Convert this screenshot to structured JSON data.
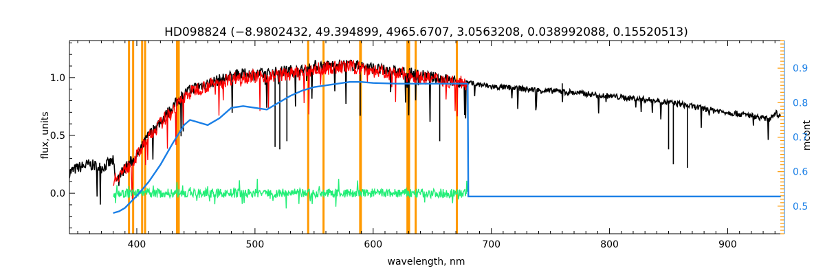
{
  "chart_data": {
    "type": "line",
    "title": "HD098824   (−8.9802432, 49.394899, 4965.6707, 3.0563208, 0.038992088, 0.15520513)",
    "xlabel": "wavelength, nm",
    "ylabel": "flux, units",
    "y2label": "mcont",
    "xlim": [
      343,
      948
    ],
    "ylim": [
      -0.35,
      1.32
    ],
    "y2lim": [
      0.42,
      0.98
    ],
    "xticks": [
      400,
      500,
      600,
      700,
      800,
      900
    ],
    "yticks": [
      0.0,
      0.5,
      1.0
    ],
    "y2ticks": [
      0.5,
      0.6,
      0.7,
      0.8,
      0.9
    ],
    "grid": false,
    "colors": {
      "observed": "#000000",
      "model": "#ff0000",
      "residual": "#22ee77",
      "continuum": "#1a7fe6",
      "mask_lines": "#ff9900",
      "right_axis": "#1a7fe6"
    },
    "mask_lines_nm": [
      393.4,
      396.9,
      404.5,
      407.0,
      434.0,
      435.5,
      545.0,
      558.0,
      589.0,
      589.6,
      629.0,
      630.4,
      636.0,
      670.8
    ],
    "series": [
      {
        "role": "observed",
        "x": [
          343,
          350,
          360,
          370,
          380,
          382,
          390,
          400,
          410,
          420,
          430,
          440,
          450,
          460,
          470,
          480,
          490,
          500,
          510,
          520,
          530,
          540,
          550,
          560,
          570,
          580,
          590,
          600,
          610,
          620,
          630,
          640,
          650,
          660,
          670,
          680,
          690,
          700,
          720,
          740,
          760,
          780,
          800,
          820,
          840,
          860,
          880,
          900,
          920,
          935,
          940,
          945
        ],
        "y": [
          0.18,
          0.22,
          0.25,
          0.22,
          0.28,
          0.1,
          0.22,
          0.32,
          0.5,
          0.62,
          0.74,
          0.86,
          0.92,
          0.95,
          0.98,
          1.01,
          1.03,
          1.03,
          1.03,
          1.05,
          1.06,
          1.06,
          1.1,
          1.1,
          1.11,
          1.11,
          1.1,
          1.08,
          1.06,
          1.05,
          1.04,
          1.02,
          1.0,
          0.99,
          0.96,
          0.95,
          0.94,
          0.92,
          0.91,
          0.89,
          0.88,
          0.86,
          0.84,
          0.82,
          0.8,
          0.77,
          0.73,
          0.7,
          0.67,
          0.64,
          0.7,
          0.66
        ]
      },
      {
        "role": "model",
        "x": [
          380,
          390,
          400,
          410,
          420,
          430,
          440,
          450,
          460,
          470,
          480,
          490,
          500,
          510,
          520,
          530,
          540,
          550,
          560,
          570,
          580,
          590,
          600,
          610,
          620,
          630,
          640,
          650,
          660,
          670,
          680
        ],
        "y": [
          0.12,
          0.2,
          0.32,
          0.48,
          0.6,
          0.72,
          0.83,
          0.9,
          0.93,
          0.96,
          0.99,
          1.01,
          1.01,
          1.01,
          1.02,
          1.03,
          1.04,
          1.07,
          1.08,
          1.09,
          1.09,
          1.08,
          1.06,
          1.04,
          1.03,
          1.02,
          1.0,
          0.99,
          0.98,
          0.96,
          0.95
        ]
      },
      {
        "role": "residual",
        "x": [
          380,
          680
        ],
        "y": [
          0.0,
          0.0
        ]
      },
      {
        "role": "continuum",
        "axis": "right",
        "x": [
          380,
          385,
          390,
          400,
          410,
          420,
          430,
          440,
          445,
          450,
          460,
          470,
          480,
          490,
          500,
          510,
          520,
          530,
          540,
          550,
          560,
          570,
          580,
          590,
          600,
          620,
          640,
          660,
          680,
          680.5,
          700,
          800,
          900,
          945
        ],
        "y": [
          0.48,
          0.485,
          0.495,
          0.53,
          0.57,
          0.62,
          0.68,
          0.735,
          0.75,
          0.745,
          0.735,
          0.755,
          0.785,
          0.79,
          0.785,
          0.78,
          0.8,
          0.82,
          0.835,
          0.845,
          0.85,
          0.855,
          0.86,
          0.86,
          0.857,
          0.855,
          0.855,
          0.855,
          0.855,
          0.528,
          0.528,
          0.528,
          0.528,
          0.528
        ]
      }
    ]
  }
}
